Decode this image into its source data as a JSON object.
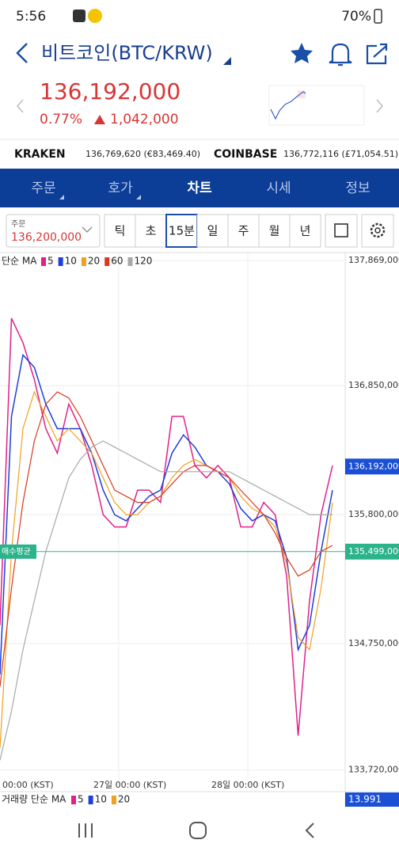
{
  "status_bar": {
    "time": "5:56",
    "battery": "70%"
  },
  "header": {
    "title": "비트코인(BTC/KRW)"
  },
  "price": {
    "current": "136,192,000",
    "change_rate": "0.77%",
    "change": "1,042,000"
  },
  "exchanges": [
    {
      "name": "KRAKEN",
      "value": "136,769,620 (€83,469.40)"
    },
    {
      "name": "COINBASE",
      "value": "136,772,116 (£71,054.51)"
    }
  ],
  "tabs": [
    "주문",
    "호가",
    "차트",
    "시세",
    "정보"
  ],
  "controls": {
    "order_label": "주문",
    "order_price": "136,200,000",
    "intervals": [
      "틱",
      "초",
      "15분",
      "일",
      "주",
      "월",
      "년"
    ],
    "selected": 2
  },
  "chart": {
    "type": "line",
    "legend_title": "단순 MA",
    "ylim": [
      133641000,
      137928000
    ],
    "yticks": [
      {
        "value": 137869000,
        "label": "137,869,000"
      },
      {
        "value": 136850000,
        "label": "136,850,000"
      },
      {
        "value": 135800000,
        "label": "135,800,000"
      },
      {
        "value": 134750000,
        "label": "134,750,000"
      },
      {
        "value": 133720000,
        "label": "133,720,000"
      }
    ],
    "x_labels": [
      "00:00 (KST)",
      "27일 00:00 (KST)",
      "28일 00:00 (KST)"
    ],
    "current_price": {
      "value": 136192000,
      "label": "136,192,000"
    },
    "average_price": {
      "name": "매수평균",
      "value": 135499000,
      "label": "135,499,000"
    },
    "series": [
      {
        "name": "5",
        "color": "#e0218a",
        "values": [
          134900000,
          137400000,
          137200000,
          136900000,
          136500000,
          136300000,
          136700000,
          136500000,
          136200000,
          135800000,
          135700000,
          135700000,
          136000000,
          136000000,
          135900000,
          136600000,
          136600000,
          136200000,
          136100000,
          136200000,
          136100000,
          135700000,
          135700000,
          135900000,
          135800000,
          135300000,
          134000000,
          135100000,
          135800000,
          136200000
        ]
      },
      {
        "name": "10",
        "color": "#1f3fd6",
        "values": [
          134500000,
          136600000,
          137100000,
          137000000,
          136700000,
          136500000,
          136500000,
          136500000,
          136300000,
          136000000,
          135800000,
          135750000,
          135850000,
          135950000,
          136000000,
          136300000,
          136450000,
          136350000,
          136200000,
          136150000,
          136050000,
          135850000,
          135750000,
          135800000,
          135750000,
          135450000,
          134700000,
          134900000,
          135500000,
          136000000
        ]
      },
      {
        "name": "20",
        "color": "#f0a020",
        "values": [
          133900000,
          135500000,
          136500000,
          136800000,
          136600000,
          136400000,
          136500000,
          136400000,
          136300000,
          136100000,
          135900000,
          135800000,
          135800000,
          135900000,
          135950000,
          136100000,
          136200000,
          136250000,
          136200000,
          136150000,
          136100000,
          135950000,
          135850000,
          135800000,
          135700000,
          135400000,
          134800000,
          134700000,
          135200000,
          135900000
        ]
      },
      {
        "name": "60",
        "color": "#d9381e",
        "values": [
          134400000,
          135200000,
          135900000,
          136400000,
          136700000,
          136800000,
          136750000,
          136600000,
          136400000,
          136200000,
          136000000,
          135950000,
          135900000,
          135900000,
          135950000,
          136050000,
          136150000,
          136200000,
          136200000,
          136150000,
          136100000,
          136000000,
          135900000,
          135800000,
          135650000,
          135450000,
          135300000,
          135350000,
          135500000,
          135550000
        ]
      },
      {
        "name": "120",
        "color": "#a8a8a8",
        "values": [
          133800000,
          134200000,
          134700000,
          135100000,
          135500000,
          135800000,
          136100000,
          136250000,
          136350000,
          136400000,
          136350000,
          136300000,
          136250000,
          136200000,
          136150000,
          136150000,
          136150000,
          136150000,
          136150000,
          136150000,
          136150000,
          136100000,
          136050000,
          136000000,
          135950000,
          135900000,
          135850000,
          135800000,
          135800000,
          135800000
        ]
      }
    ]
  },
  "volume": {
    "legend_title": "거래량 단순 MA",
    "value": "13.991"
  }
}
